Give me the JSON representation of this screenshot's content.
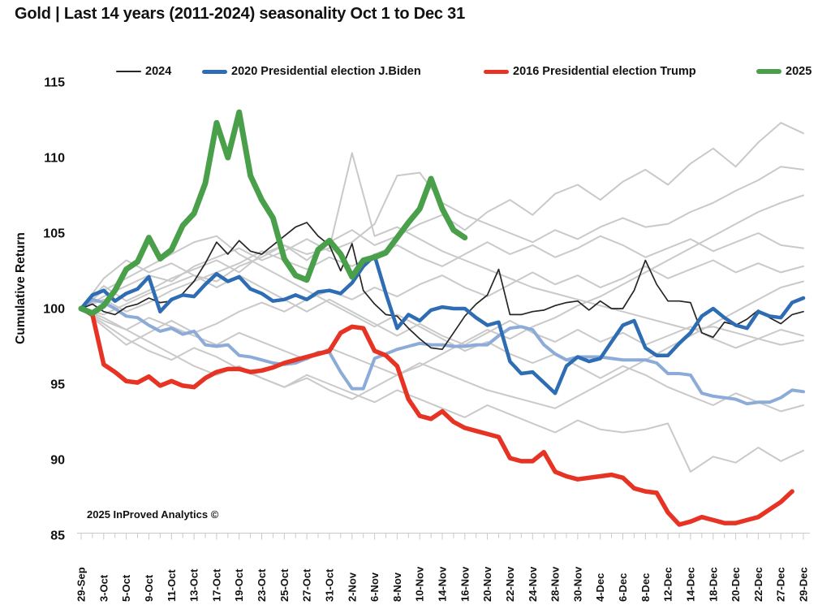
{
  "title": "Gold | Last 14 years (2011-2024) seasonality Oct 1 to Dec 31",
  "watermark": "2025 InProved Analytics ©",
  "legend": {
    "position": "top",
    "items": [
      {
        "label": "2024",
        "color": "#262626",
        "thickness": 2
      },
      {
        "label": "2020 Presidential election J.Biden",
        "color": "#2e6db4",
        "thickness": 5
      },
      {
        "label": "2016 Presidential election Trump",
        "color": "#e63323",
        "thickness": 5
      },
      {
        "label": "2025",
        "color": "#4aa04a",
        "thickness": 6
      }
    ]
  },
  "chart_data": {
    "type": "line",
    "title": "Gold | Last 14 years (2011-2024) seasonality Oct 1 to Dec 31",
    "xlabel": "",
    "ylabel": "Cumulative Return",
    "ylim": [
      85,
      115
    ],
    "y_ticks": [
      85,
      90,
      95,
      100,
      105,
      110,
      115
    ],
    "grid": false,
    "x_is_trading_days": true,
    "n_points": 65,
    "x_labels": [
      "29-Sep",
      "3-Oct",
      "5-Oct",
      "9-Oct",
      "11-Oct",
      "13-Oct",
      "17-Oct",
      "19-Oct",
      "23-Oct",
      "25-Oct",
      "27-Oct",
      "31-Oct",
      "2-Nov",
      "6-Nov",
      "8-Nov",
      "10-Nov",
      "14-Nov",
      "16-Nov",
      "20-Nov",
      "22-Nov",
      "24-Nov",
      "28-Nov",
      "30-Nov",
      "4-Dec",
      "6-Dec",
      "8-Dec",
      "12-Dec",
      "14-Dec",
      "18-Dec",
      "20-Dec",
      "22-Dec",
      "27-Dec",
      "29-Dec"
    ],
    "series": [
      {
        "name": "other year (gray) 1",
        "color": "#c9c9c9",
        "width": 2,
        "step": 2,
        "values": [
          100,
          101.5,
          100.5,
          101.2,
          102.0,
          102.6,
          103.2,
          102.4,
          103.6,
          104.2,
          103.2,
          104.4,
          105.2,
          104.2,
          104.8,
          105.6,
          106.2,
          105.2,
          106.4,
          107.2,
          106.2,
          107.6,
          108.2,
          107.2,
          108.4,
          109.2,
          108.2,
          109.6,
          110.6,
          109.4,
          111.0,
          112.3,
          111.6
        ]
      },
      {
        "name": "other year (gray) 2",
        "color": "#c9c9c9",
        "width": 2,
        "step": 2,
        "values": [
          100,
          99.6,
          100.3,
          101.0,
          101.6,
          102.2,
          101.8,
          102.8,
          103.4,
          104.2,
          103.6,
          104.0,
          110.3,
          104.8,
          105.4,
          104.6,
          103.8,
          103.2,
          102.6,
          102.0,
          101.4,
          101.0,
          100.6,
          100.2,
          99.8,
          99.4,
          99.0,
          98.6,
          98.8,
          98.4,
          98.0,
          97.6,
          97.9
        ]
      },
      {
        "name": "other year (gray) 3",
        "color": "#c9c9c9",
        "width": 2,
        "step": 2,
        "values": [
          100,
          100.8,
          101.5,
          102.2,
          101.8,
          102.8,
          103.4,
          104.0,
          103.2,
          103.8,
          104.6,
          103.8,
          104.4,
          105.6,
          108.8,
          109.0,
          107.0,
          106.2,
          105.6,
          105.0,
          104.4,
          105.2,
          104.6,
          105.4,
          106.0,
          105.4,
          105.6,
          106.4,
          107.0,
          107.8,
          108.5,
          109.4,
          109.2
        ]
      },
      {
        "name": "other year (gray) 4",
        "color": "#c9c9c9",
        "width": 2,
        "step": 2,
        "values": [
          100,
          99.2,
          98.6,
          99.4,
          98.8,
          98.2,
          97.6,
          98.4,
          97.8,
          97.2,
          96.6,
          97.4,
          96.8,
          96.2,
          95.6,
          96.4,
          95.8,
          95.2,
          94.6,
          94.2,
          93.8,
          93.4,
          94.2,
          95.0,
          95.8,
          96.6,
          97.4,
          98.2,
          99.0,
          99.8,
          100.6,
          101.4,
          101.8
        ]
      },
      {
        "name": "other year (gray) 5",
        "color": "#c9c9c9",
        "width": 2,
        "step": 2,
        "values": [
          100,
          99.0,
          98.0,
          97.2,
          96.6,
          97.4,
          96.8,
          96.0,
          95.4,
          94.8,
          95.6,
          95.0,
          94.4,
          93.8,
          94.6,
          94.0,
          93.4,
          92.8,
          93.6,
          93.0,
          92.4,
          91.8,
          92.6,
          92.0,
          91.8,
          92.0,
          92.4,
          89.2,
          90.2,
          89.8,
          90.8,
          89.9,
          90.6
        ]
      },
      {
        "name": "other year (gray) 6",
        "color": "#c9c9c9",
        "width": 2,
        "step": 2,
        "values": [
          100,
          101.2,
          102.0,
          102.8,
          103.6,
          104.4,
          104.8,
          103.6,
          102.8,
          102.0,
          101.2,
          100.4,
          99.6,
          98.8,
          99.6,
          98.8,
          98.0,
          97.2,
          97.8,
          97.0,
          96.4,
          97.0,
          96.2,
          95.4,
          96.2,
          95.6,
          94.8,
          94.2,
          93.6,
          94.4,
          93.8,
          93.2,
          93.6
        ]
      },
      {
        "name": "other year (gray) 7",
        "color": "#c9c9c9",
        "width": 2,
        "step": 2,
        "values": [
          100,
          100.6,
          99.8,
          100.4,
          101.2,
          101.8,
          102.4,
          103.0,
          103.8,
          103.2,
          102.6,
          103.4,
          102.8,
          103.6,
          104.2,
          103.4,
          102.8,
          103.6,
          104.4,
          103.6,
          104.2,
          103.4,
          104.0,
          104.8,
          104.2,
          103.4,
          104.0,
          104.6,
          103.8,
          104.4,
          105.0,
          104.2,
          104.0
        ]
      },
      {
        "name": "other year (gray) 8",
        "color": "#c9c9c9",
        "width": 2,
        "step": 2,
        "values": [
          100,
          98.8,
          97.6,
          98.4,
          99.2,
          98.4,
          99.0,
          99.8,
          100.4,
          99.8,
          100.6,
          101.2,
          100.6,
          101.4,
          100.8,
          101.6,
          102.2,
          101.4,
          100.8,
          101.6,
          102.4,
          101.6,
          102.2,
          101.4,
          102.0,
          102.8,
          102.0,
          102.6,
          103.2,
          102.4,
          103.0,
          102.4,
          102.8
        ]
      },
      {
        "name": "other year (gray) 9",
        "color": "#c9c9c9",
        "width": 2,
        "step": 2,
        "values": [
          100,
          102.0,
          103.2,
          102.4,
          103.0,
          102.2,
          101.4,
          102.2,
          101.4,
          100.6,
          99.8,
          100.6,
          99.8,
          99.0,
          98.2,
          99.0,
          98.2,
          97.6,
          98.4,
          99.2,
          98.4,
          97.8,
          98.6,
          97.8,
          98.4,
          97.6,
          98.2,
          98.8,
          98.0,
          97.4,
          98.0,
          98.6,
          98.2
        ]
      },
      {
        "name": "other year (gray) 10",
        "color": "#c9c9c9",
        "width": 2,
        "step": 2,
        "values": [
          100,
          99.4,
          98.6,
          97.8,
          97.0,
          96.2,
          95.6,
          96.2,
          95.4,
          94.8,
          95.4,
          94.6,
          94.0,
          94.8,
          95.6,
          96.2,
          97.0,
          97.8,
          98.6,
          98.0,
          98.8,
          99.4,
          100.2,
          100.8,
          101.6,
          102.4,
          103.2,
          104.0,
          104.8,
          105.6,
          106.4,
          107.0,
          107.5
        ]
      },
      {
        "name": "other year (light blue, unlabeled)",
        "color": "#8cabd8",
        "width": 4,
        "step": 1,
        "values": [
          100,
          100.6,
          100.4,
          100.0,
          99.5,
          99.4,
          98.9,
          98.5,
          98.7,
          98.3,
          98.5,
          97.6,
          97.5,
          97.6,
          96.9,
          96.8,
          96.6,
          96.4,
          96.3,
          96.4,
          96.7,
          97.1,
          97.1,
          95.8,
          94.7,
          94.7,
          96.7,
          97.0,
          97.3,
          97.5,
          97.7,
          97.6,
          97.6,
          97.5,
          97.5,
          97.6,
          97.6,
          98.2,
          98.7,
          98.8,
          98.6,
          97.6,
          97.0,
          96.6,
          96.8,
          96.8,
          96.8,
          96.7,
          96.6,
          96.6,
          96.6,
          96.4,
          95.7,
          95.7,
          95.6,
          94.4,
          94.2,
          94.1,
          94.0,
          93.7,
          93.8,
          93.8,
          94.1,
          94.6,
          94.5
        ]
      },
      {
        "name": "2024",
        "color": "#262626",
        "width": 1.7,
        "step": 1,
        "values": [
          100,
          100.3,
          99.8,
          99.6,
          100.1,
          100.3,
          100.7,
          100.4,
          100.5,
          101.0,
          101.8,
          103.0,
          104.4,
          103.6,
          104.5,
          103.8,
          103.6,
          104.2,
          104.8,
          105.4,
          105.7,
          104.8,
          104.2,
          102.5,
          104.3,
          101.2,
          100.3,
          99.6,
          99.5,
          98.7,
          98.0,
          97.4,
          97.3,
          98.4,
          99.5,
          100.3,
          100.9,
          102.6,
          99.6,
          99.6,
          99.8,
          99.9,
          100.2,
          100.4,
          100.5,
          99.9,
          100.5,
          100.0,
          100.0,
          101.2,
          103.2,
          101.6,
          100.5,
          100.5,
          100.4,
          98.4,
          98.1,
          99.1,
          98.9,
          99.3,
          99.9,
          99.4,
          99.0,
          99.6,
          99.8
        ]
      },
      {
        "name": "2016 Presidential election Trump",
        "color": "#e63323",
        "width": 5.5,
        "step": 1,
        "values": [
          100,
          99.6,
          96.3,
          95.8,
          95.2,
          95.1,
          95.5,
          94.9,
          95.2,
          94.9,
          94.8,
          95.4,
          95.8,
          96.0,
          96.0,
          95.8,
          95.9,
          96.1,
          96.4,
          96.6,
          96.8,
          97.0,
          97.2,
          98.4,
          98.8,
          98.7,
          97.2,
          96.9,
          96.2,
          94.0,
          92.9,
          92.7,
          93.2,
          92.5,
          92.1,
          91.9,
          91.7,
          91.5,
          90.1,
          89.9,
          89.9,
          90.5,
          89.2,
          88.9,
          88.7,
          88.8,
          88.9,
          89.0,
          88.8,
          88.1,
          87.9,
          87.8,
          86.5,
          85.7,
          85.9,
          86.2,
          86.0,
          85.8,
          85.8,
          86.0,
          86.2,
          86.7,
          87.2,
          87.9
        ]
      },
      {
        "name": "2020 Presidential election J.Biden",
        "color": "#2e6db4",
        "width": 4.5,
        "step": 1,
        "values": [
          100,
          100.9,
          101.2,
          100.5,
          101.0,
          101.3,
          102.1,
          99.8,
          100.6,
          100.9,
          100.8,
          101.6,
          102.3,
          101.8,
          102.1,
          101.3,
          101.0,
          100.5,
          100.6,
          100.9,
          100.6,
          101.1,
          101.2,
          101.0,
          101.7,
          102.8,
          103.5,
          101.0,
          98.7,
          99.6,
          99.2,
          99.9,
          100.1,
          100.0,
          100.0,
          99.4,
          98.9,
          99.1,
          96.5,
          95.7,
          95.8,
          95.1,
          94.4,
          96.2,
          96.8,
          96.5,
          96.7,
          97.8,
          98.9,
          99.2,
          97.4,
          96.9,
          96.9,
          97.7,
          98.4,
          99.5,
          100.0,
          99.4,
          98.9,
          98.7,
          99.8,
          99.5,
          99.4,
          100.4,
          100.7
        ]
      },
      {
        "name": "2025",
        "color": "#4aa04a",
        "width": 7,
        "step": 1,
        "values": [
          100,
          99.7,
          100.2,
          101.2,
          102.6,
          103.1,
          104.7,
          103.3,
          103.9,
          105.5,
          106.3,
          108.3,
          112.3,
          110.0,
          113.0,
          108.8,
          107.2,
          106.0,
          103.3,
          102.2,
          101.9,
          103.9,
          104.5,
          103.6,
          102.1,
          103.2,
          103.4,
          103.7,
          104.7,
          105.7,
          106.6,
          108.6,
          106.6,
          105.2,
          104.7
        ]
      }
    ]
  }
}
